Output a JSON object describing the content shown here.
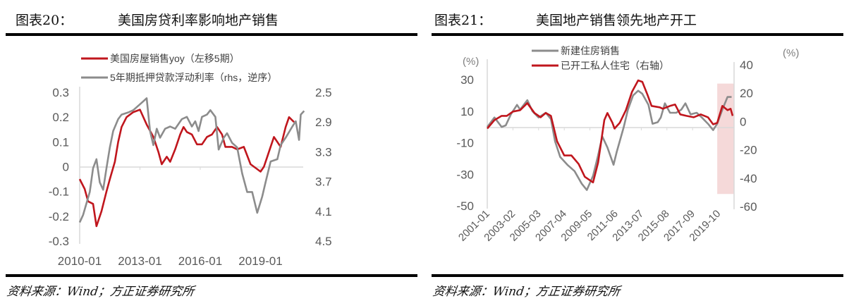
{
  "panels": [
    {
      "number": "图表20：",
      "title": "美国房贷利率影响地产销售",
      "source": "资料来源：Wind；方正证券研究所"
    },
    {
      "number": "图表21：",
      "title": "美国地产销售领先地产开工",
      "source": "资料来源：Wind；方正证券研究所"
    }
  ],
  "chart_data": [
    {
      "type": "line",
      "x_ticks": [
        "2010-01",
        "2013-01",
        "2016-01",
        "2019-01"
      ],
      "y_left": {
        "ticks": [
          "0.3",
          "0.2",
          "0.1",
          "0",
          "-0.1",
          "-0.2",
          "-0.3"
        ],
        "range": [
          -0.3,
          0.3
        ]
      },
      "y_right": {
        "ticks": [
          "2.5",
          "2.9",
          "3.3",
          "3.7",
          "4.1",
          "4.5"
        ],
        "range": [
          2.5,
          4.5
        ],
        "inverted": true
      },
      "legend_position": "top",
      "series": [
        {
          "name": "美国房屋销售yoy（左移5期）",
          "axis": "left",
          "color": "#c0161d",
          "points": [
            [
              "2010-01",
              -0.05
            ],
            [
              "2010-04",
              -0.09
            ],
            [
              "2010-06",
              -0.14
            ],
            [
              "2010-09",
              -0.15
            ],
            [
              "2010-11",
              -0.24
            ],
            [
              "2011-02",
              -0.18
            ],
            [
              "2011-05",
              -0.1
            ],
            [
              "2011-07",
              -0.05
            ],
            [
              "2011-10",
              0.02
            ],
            [
              "2011-12",
              0.1
            ],
            [
              "2012-02",
              0.16
            ],
            [
              "2012-05",
              0.2
            ],
            [
              "2012-09",
              0.22
            ],
            [
              "2013-01",
              0.23
            ],
            [
              "2013-05",
              0.17
            ],
            [
              "2013-09",
              0.12
            ],
            [
              "2013-12",
              0.06
            ],
            [
              "2014-02",
              0.01
            ],
            [
              "2014-05",
              0.04
            ],
            [
              "2014-07",
              0.02
            ],
            [
              "2014-10",
              0.07
            ],
            [
              "2015-01",
              0.13
            ],
            [
              "2015-03",
              0.16
            ],
            [
              "2015-05",
              0.14
            ],
            [
              "2015-08",
              0.13
            ],
            [
              "2015-11",
              0.09
            ],
            [
              "2016-02",
              0.09
            ],
            [
              "2016-05",
              0.12
            ],
            [
              "2016-08",
              0.13
            ],
            [
              "2016-11",
              0.16
            ],
            [
              "2017-02",
              0.13
            ],
            [
              "2017-04",
              0.08
            ],
            [
              "2017-08",
              0.08
            ],
            [
              "2017-11",
              0.07
            ],
            [
              "2018-03",
              0.08
            ],
            [
              "2018-07",
              0.01
            ],
            [
              "2018-11",
              -0.01
            ],
            [
              "2019-01",
              -0.02
            ],
            [
              "2019-03",
              0.0
            ],
            [
              "2019-09",
              0.12
            ],
            [
              "2020-01",
              0.08
            ],
            [
              "2020-04",
              0.16
            ],
            [
              "2020-06",
              0.2
            ],
            [
              "2020-09",
              0.18
            ]
          ]
        },
        {
          "name": "5年期抵押贷款浮动利率（rhs，逆序）",
          "axis": "right",
          "color": "#8c8c8c",
          "points": [
            [
              "2010-01",
              4.25
            ],
            [
              "2010-03",
              4.15
            ],
            [
              "2010-07",
              3.84
            ],
            [
              "2010-09",
              3.52
            ],
            [
              "2010-11",
              3.4
            ],
            [
              "2011-01",
              3.71
            ],
            [
              "2011-03",
              3.81
            ],
            [
              "2011-05",
              3.52
            ],
            [
              "2011-07",
              3.24
            ],
            [
              "2011-09",
              3.02
            ],
            [
              "2011-12",
              2.86
            ],
            [
              "2012-02",
              2.8
            ],
            [
              "2012-06",
              2.77
            ],
            [
              "2012-09",
              2.74
            ],
            [
              "2013-02",
              2.64
            ],
            [
              "2013-05",
              2.58
            ],
            [
              "2013-07",
              3.02
            ],
            [
              "2013-09",
              3.21
            ],
            [
              "2013-11",
              2.99
            ],
            [
              "2014-01",
              3.11
            ],
            [
              "2014-04",
              2.99
            ],
            [
              "2014-07",
              2.96
            ],
            [
              "2014-10",
              2.99
            ],
            [
              "2015-02",
              2.86
            ],
            [
              "2015-05",
              2.83
            ],
            [
              "2015-08",
              2.96
            ],
            [
              "2015-10",
              2.89
            ],
            [
              "2015-12",
              3.02
            ],
            [
              "2016-02",
              2.83
            ],
            [
              "2016-05",
              2.8
            ],
            [
              "2016-07",
              2.74
            ],
            [
              "2016-10",
              2.83
            ],
            [
              "2016-12",
              3.27
            ],
            [
              "2017-03",
              3.11
            ],
            [
              "2017-05",
              3.05
            ],
            [
              "2017-08",
              3.18
            ],
            [
              "2017-11",
              3.24
            ],
            [
              "2018-02",
              3.59
            ],
            [
              "2018-05",
              3.84
            ],
            [
              "2018-08",
              3.84
            ],
            [
              "2018-11",
              4.12
            ],
            [
              "2019-02",
              3.9
            ],
            [
              "2019-04",
              3.71
            ],
            [
              "2019-07",
              3.43
            ],
            [
              "2019-11",
              3.4
            ],
            [
              "2020-01",
              3.21
            ],
            [
              "2020-04",
              3.11
            ],
            [
              "2020-08",
              2.96
            ],
            [
              "2020-10",
              2.89
            ],
            [
              "2020-12",
              3.14
            ],
            [
              "2021-01",
              2.8
            ],
            [
              "2021-03",
              2.75
            ]
          ]
        }
      ]
    },
    {
      "type": "line",
      "x_ticks": [
        "2001-01",
        "2003-02",
        "2005-03",
        "2007-04",
        "2009-05",
        "2011-06",
        "2013-07",
        "2015-08",
        "2017-09",
        "2019-10"
      ],
      "y_left": {
        "unit": "(%)",
        "ticks": [
          "30",
          "10",
          "-10",
          "-30",
          "-50"
        ],
        "range": [
          -50,
          30
        ]
      },
      "y_right": {
        "unit": "(%)",
        "ticks": [
          "40",
          "20",
          "0",
          "-20",
          "-40",
          "-60"
        ],
        "range": [
          -60,
          40
        ]
      },
      "legend_position": "top",
      "highlight": {
        "from": "2019-09",
        "to": "2021-01",
        "color": "#f5d9d9"
      },
      "series": [
        {
          "name": "新建住房销售",
          "axis": "left",
          "color": "#8c8c8c",
          "points": [
            [
              "2001-01",
              0
            ],
            [
              "2001-08",
              6
            ],
            [
              "2002-03",
              0
            ],
            [
              "2002-07",
              1
            ],
            [
              "2002-12",
              8
            ],
            [
              "2003-06",
              14
            ],
            [
              "2003-09",
              11
            ],
            [
              "2004-04",
              17
            ],
            [
              "2004-09",
              10
            ],
            [
              "2005-03",
              6
            ],
            [
              "2005-10",
              9
            ],
            [
              "2006-03",
              5
            ],
            [
              "2006-07",
              -9
            ],
            [
              "2006-12",
              -19
            ],
            [
              "2007-07",
              -24
            ],
            [
              "2008-02",
              -28
            ],
            [
              "2008-09",
              -36
            ],
            [
              "2009-02",
              -40
            ],
            [
              "2009-08",
              -31
            ],
            [
              "2010-01",
              -18
            ],
            [
              "2010-05",
              -6
            ],
            [
              "2010-10",
              -13
            ],
            [
              "2011-04",
              -24
            ],
            [
              "2011-07",
              -16
            ],
            [
              "2012-02",
              0
            ],
            [
              "2012-06",
              11
            ],
            [
              "2012-11",
              20
            ],
            [
              "2013-04",
              23
            ],
            [
              "2013-08",
              21
            ],
            [
              "2014-02",
              14
            ],
            [
              "2014-06",
              2
            ],
            [
              "2014-11",
              3
            ],
            [
              "2015-02",
              6
            ],
            [
              "2015-06",
              15
            ],
            [
              "2015-11",
              9
            ],
            [
              "2016-05",
              9
            ],
            [
              "2016-10",
              11
            ],
            [
              "2017-02",
              15
            ],
            [
              "2017-07",
              8
            ],
            [
              "2018-01",
              9
            ],
            [
              "2018-06",
              6
            ],
            [
              "2018-12",
              2
            ],
            [
              "2019-05",
              -2
            ],
            [
              "2019-09",
              2
            ],
            [
              "2020-02",
              11
            ],
            [
              "2020-07",
              19
            ],
            [
              "2020-11",
              19
            ]
          ]
        },
        {
          "name": "已开工私人住宅（右轴）",
          "axis": "right",
          "color": "#c0161d",
          "points": [
            [
              "2001-01",
              -5
            ],
            [
              "2001-08",
              1
            ],
            [
              "2002-03",
              4
            ],
            [
              "2002-08",
              4
            ],
            [
              "2003-02",
              7
            ],
            [
              "2003-09",
              8
            ],
            [
              "2004-04",
              13
            ],
            [
              "2004-11",
              6
            ],
            [
              "2005-05",
              3
            ],
            [
              "2005-10",
              6
            ],
            [
              "2006-03",
              4
            ],
            [
              "2006-09",
              -14
            ],
            [
              "2007-04",
              -24
            ],
            [
              "2007-11",
              -24
            ],
            [
              "2008-06",
              -30
            ],
            [
              "2008-12",
              -39
            ],
            [
              "2009-08",
              -43
            ],
            [
              "2010-01",
              -29
            ],
            [
              "2010-07",
              1
            ],
            [
              "2010-10",
              6
            ],
            [
              "2011-03",
              -1
            ],
            [
              "2011-05",
              -5
            ],
            [
              "2011-10",
              -1
            ],
            [
              "2012-04",
              8
            ],
            [
              "2012-10",
              21
            ],
            [
              "2013-04",
              29
            ],
            [
              "2013-08",
              28
            ],
            [
              "2014-01",
              19
            ],
            [
              "2014-05",
              11
            ],
            [
              "2015-01",
              10
            ],
            [
              "2015-04",
              9
            ],
            [
              "2015-11",
              11
            ],
            [
              "2016-04",
              12
            ],
            [
              "2016-09",
              5
            ],
            [
              "2017-03",
              4
            ],
            [
              "2017-10",
              3
            ],
            [
              "2018-05",
              5
            ],
            [
              "2018-12",
              3
            ],
            [
              "2019-05",
              -2
            ],
            [
              "2019-09",
              -1
            ],
            [
              "2020-02",
              11
            ],
            [
              "2020-07",
              8
            ],
            [
              "2020-10",
              9
            ],
            [
              "2020-12",
              4
            ]
          ]
        }
      ]
    }
  ]
}
